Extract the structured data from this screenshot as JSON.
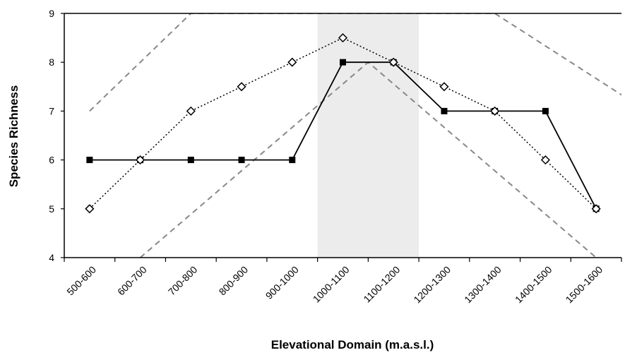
{
  "chart_data": {
    "type": "line",
    "title": "",
    "xlabel": "Elevational Domain (m.a.s.l.)",
    "ylabel": "Species Richness",
    "ylim": [
      4,
      9
    ],
    "yticks": [
      4,
      5,
      6,
      7,
      8,
      9
    ],
    "categories": [
      "500-600",
      "600-700",
      "700-800",
      "800-900",
      "900-1000",
      "1000-1100",
      "1100-1200",
      "1200-1300",
      "1300-1400",
      "1400-1500",
      "1500-1600"
    ],
    "grid": false,
    "legend": "none",
    "series": [
      {
        "style": "solid",
        "marker": "filled-square",
        "color": "#000000",
        "values": [
          6,
          6,
          6,
          6,
          6,
          8,
          8,
          7,
          7,
          7,
          5
        ]
      },
      {
        "style": "dotted",
        "marker": "open-diamond",
        "color": "#000000",
        "values": [
          5,
          6,
          7,
          7.5,
          8,
          8.5,
          8,
          7.5,
          7,
          6,
          5
        ]
      }
    ],
    "bounds": {
      "color": "#888888",
      "style": "dashed",
      "upper": {
        "x": [
          0,
          2,
          8,
          11
        ],
        "y": [
          7,
          9,
          9,
          7
        ]
      },
      "lower": {
        "x": [
          1,
          5.5,
          10
        ],
        "y": [
          4,
          8,
          4
        ]
      }
    },
    "highlight": {
      "from": 4.5,
      "to": 6.5,
      "color": "#ececec"
    }
  }
}
